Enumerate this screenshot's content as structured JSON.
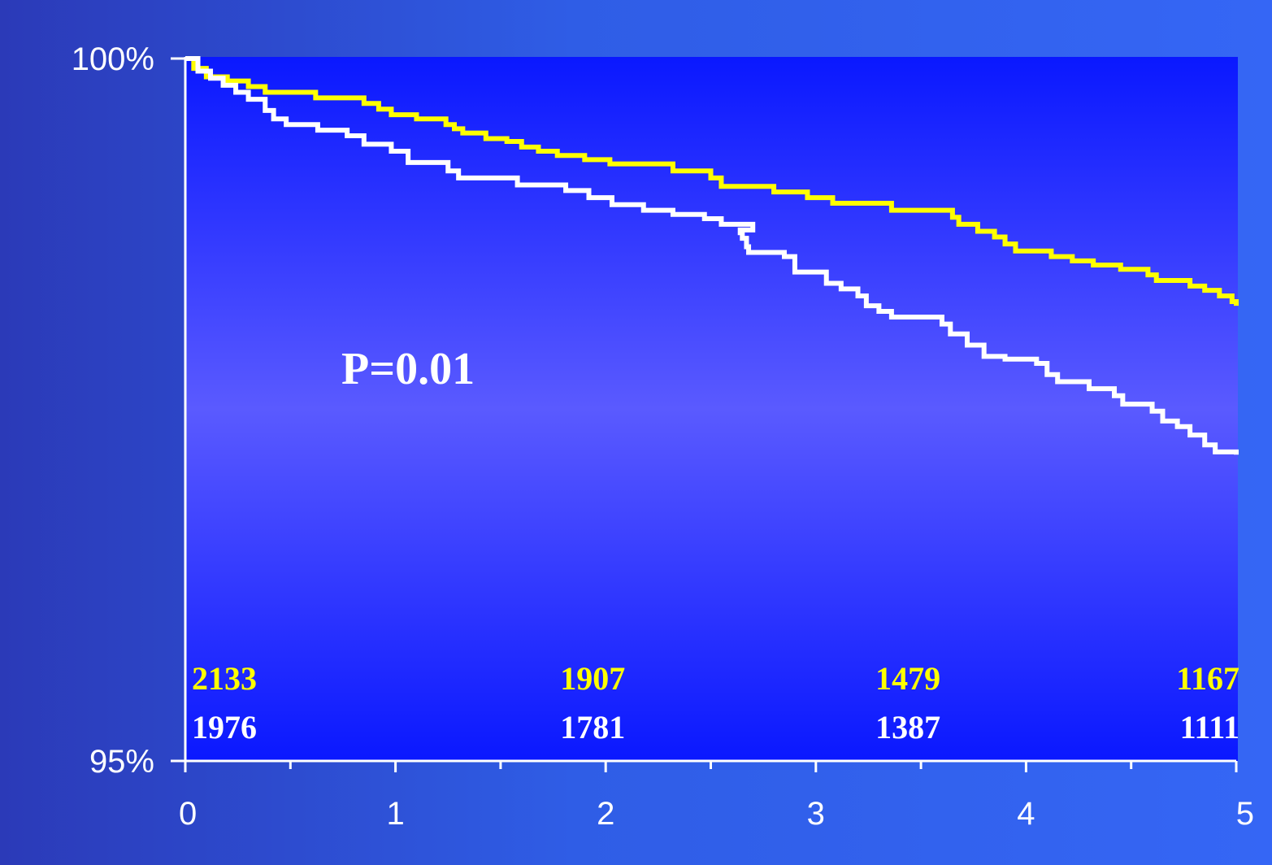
{
  "chart_data": {
    "type": "line",
    "title": "",
    "xlabel": "",
    "ylabel": "",
    "xlim": [
      0,
      5
    ],
    "ylim": [
      95,
      100
    ],
    "x_ticks": [
      "0",
      "1",
      "2",
      "3",
      "4",
      "5"
    ],
    "y_tick_labels": [
      {
        "value": 100,
        "label": "100%"
      },
      {
        "value": 95,
        "label": "95%"
      }
    ],
    "grid": false,
    "legend": "none",
    "annotation": "P=0.01",
    "series": [
      {
        "color": "#ffff00",
        "step": true,
        "points": [
          [
            0.0,
            100.0
          ],
          [
            0.04,
            99.93
          ],
          [
            0.1,
            99.87
          ],
          [
            0.2,
            99.84
          ],
          [
            0.3,
            99.8
          ],
          [
            0.38,
            99.76
          ],
          [
            0.62,
            99.72
          ],
          [
            0.85,
            99.68
          ],
          [
            0.92,
            99.64
          ],
          [
            0.98,
            99.6
          ],
          [
            1.1,
            99.57
          ],
          [
            1.24,
            99.53
          ],
          [
            1.28,
            99.5
          ],
          [
            1.32,
            99.47
          ],
          [
            1.43,
            99.43
          ],
          [
            1.53,
            99.41
          ],
          [
            1.6,
            99.37
          ],
          [
            1.68,
            99.34
          ],
          [
            1.77,
            99.31
          ],
          [
            1.9,
            99.28
          ],
          [
            2.02,
            99.25
          ],
          [
            2.32,
            99.2
          ],
          [
            2.5,
            99.15
          ],
          [
            2.55,
            99.09
          ],
          [
            2.8,
            99.05
          ],
          [
            2.96,
            99.01
          ],
          [
            3.08,
            98.97
          ],
          [
            3.36,
            98.92
          ],
          [
            3.65,
            98.87
          ],
          [
            3.68,
            98.82
          ],
          [
            3.77,
            98.77
          ],
          [
            3.85,
            98.73
          ],
          [
            3.9,
            98.68
          ],
          [
            3.95,
            98.63
          ],
          [
            4.12,
            98.59
          ],
          [
            4.22,
            98.56
          ],
          [
            4.32,
            98.53
          ],
          [
            4.45,
            98.5
          ],
          [
            4.58,
            98.46
          ],
          [
            4.62,
            98.42
          ],
          [
            4.78,
            98.38
          ],
          [
            4.85,
            98.35
          ],
          [
            4.92,
            98.31
          ],
          [
            4.98,
            98.27
          ],
          [
            5.0,
            98.24
          ]
        ]
      },
      {
        "color": "#ffffff",
        "step": true,
        "points": [
          [
            0.0,
            100.0
          ],
          [
            0.06,
            99.91
          ],
          [
            0.12,
            99.86
          ],
          [
            0.18,
            99.81
          ],
          [
            0.24,
            99.76
          ],
          [
            0.3,
            99.71
          ],
          [
            0.38,
            99.63
          ],
          [
            0.42,
            99.57
          ],
          [
            0.48,
            99.53
          ],
          [
            0.63,
            99.49
          ],
          [
            0.77,
            99.45
          ],
          [
            0.85,
            99.39
          ],
          [
            0.98,
            99.34
          ],
          [
            1.06,
            99.26
          ],
          [
            1.25,
            99.2
          ],
          [
            1.3,
            99.15
          ],
          [
            1.58,
            99.1
          ],
          [
            1.81,
            99.06
          ],
          [
            1.92,
            99.01
          ],
          [
            2.03,
            98.96
          ],
          [
            2.18,
            98.92
          ],
          [
            2.32,
            98.89
          ],
          [
            2.47,
            98.86
          ],
          [
            2.55,
            98.82
          ],
          [
            2.7,
            98.78
          ],
          [
            2.64,
            98.76
          ],
          [
            2.65,
            98.72
          ],
          [
            2.67,
            98.66
          ],
          [
            2.68,
            98.62
          ],
          [
            2.85,
            98.59
          ],
          [
            2.9,
            98.48
          ],
          [
            3.05,
            98.4
          ],
          [
            3.12,
            98.36
          ],
          [
            3.2,
            98.31
          ],
          [
            3.24,
            98.24
          ],
          [
            3.3,
            98.2
          ],
          [
            3.36,
            98.16
          ],
          [
            3.6,
            98.11
          ],
          [
            3.64,
            98.04
          ],
          [
            3.72,
            97.96
          ],
          [
            3.8,
            97.88
          ],
          [
            3.9,
            97.86
          ],
          [
            4.05,
            97.83
          ],
          [
            4.1,
            97.75
          ],
          [
            4.15,
            97.7
          ],
          [
            4.3,
            97.65
          ],
          [
            4.42,
            97.6
          ],
          [
            4.46,
            97.54
          ],
          [
            4.6,
            97.49
          ],
          [
            4.65,
            97.42
          ],
          [
            4.72,
            97.38
          ],
          [
            4.78,
            97.32
          ],
          [
            4.85,
            97.25
          ],
          [
            4.9,
            97.2
          ],
          [
            5.0,
            97.18
          ]
        ]
      }
    ],
    "numbers_at_risk": [
      {
        "x": 0,
        "values": [
          "2133",
          "1976"
        ]
      },
      {
        "x": 2,
        "values": [
          "1907",
          "1781"
        ]
      },
      {
        "x": 3.5,
        "values": [
          "1479",
          "1387"
        ]
      },
      {
        "x": 5,
        "values": [
          "1167",
          "1111"
        ]
      }
    ]
  },
  "colors": {
    "series_1": "#ffff00",
    "series_2": "#ffffff",
    "plot_bg_top": "#0a18ff",
    "plot_bg_mid": "#5a5aff",
    "plot_bg_bottom": "#0a18ff"
  }
}
